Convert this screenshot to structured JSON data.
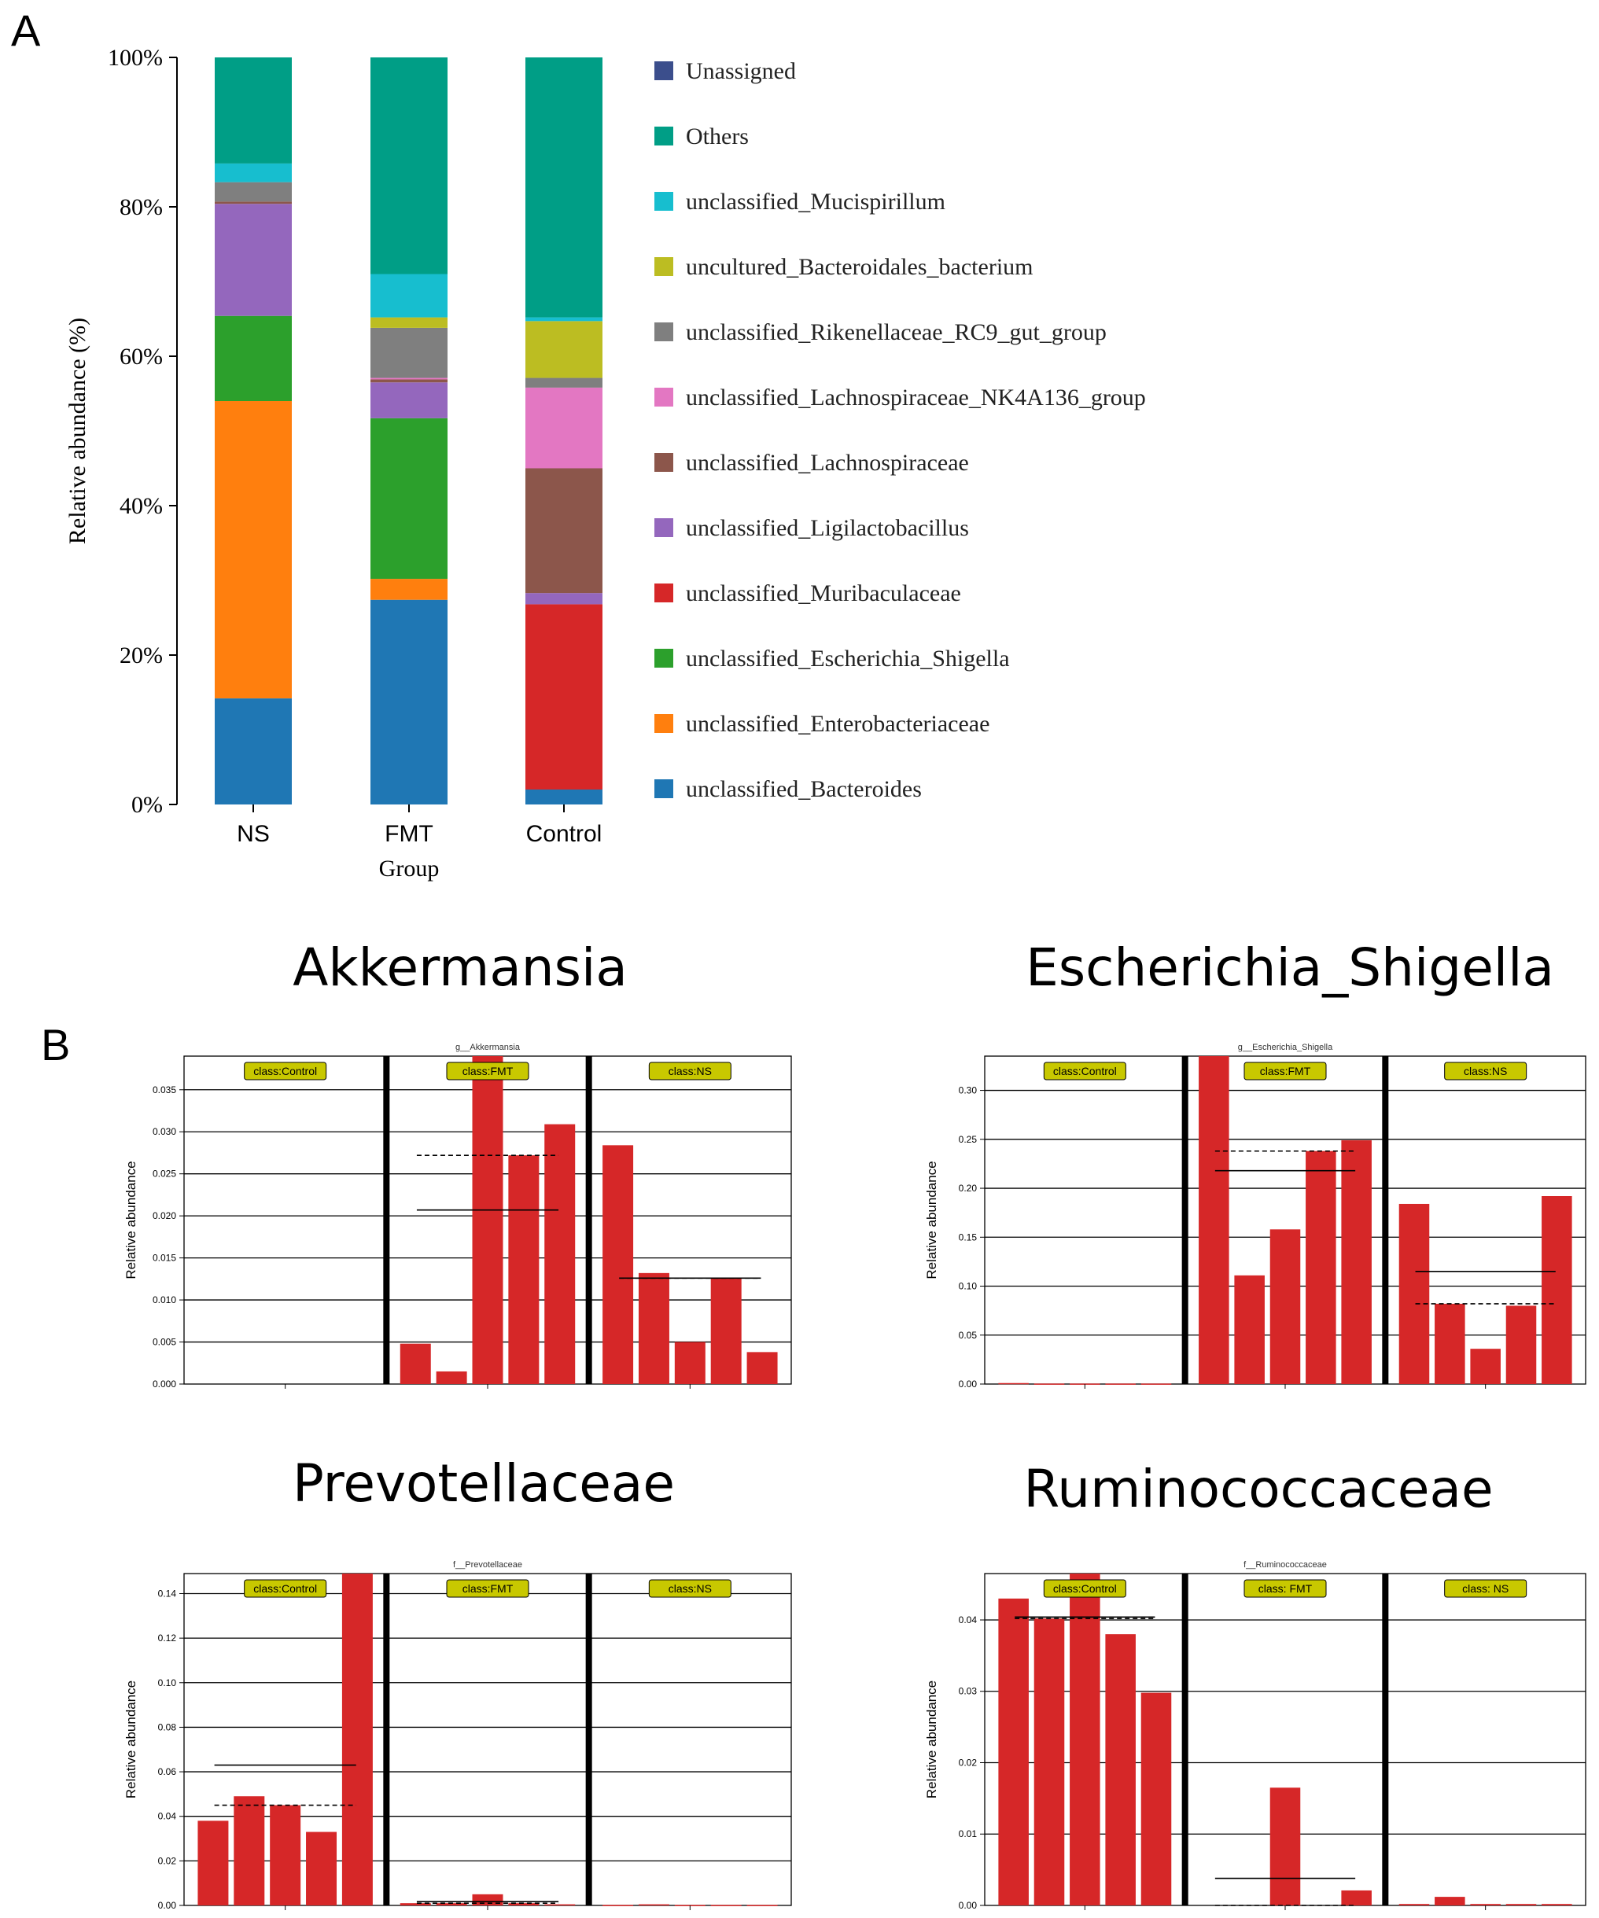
{
  "panel_labels": {
    "a": "A",
    "b": "B"
  },
  "chart_data": [
    {
      "id": "stacked",
      "type": "bar",
      "stacked": true,
      "ylabel": "Relative abundance (%)",
      "xlabel": "Group",
      "ylim": [
        0,
        100
      ],
      "yticks": [
        "0%",
        "20%",
        "40%",
        "60%",
        "80%",
        "100%"
      ],
      "categories": [
        "NS",
        "FMT",
        "Control"
      ],
      "series": [
        {
          "name": "unclassified_Bacteroides",
          "color": "#1f77b4",
          "values": [
            14.2,
            27.4,
            2.0
          ]
        },
        {
          "name": "unclassified_Enterobacteriaceae",
          "color": "#ff7f0e",
          "values": [
            39.8,
            2.8,
            0.0
          ]
        },
        {
          "name": "unclassified_Escherichia_Shigella",
          "color": "#2ca02c",
          "values": [
            11.4,
            21.5,
            0.0
          ]
        },
        {
          "name": "unclassified_Muribaculaceae",
          "color": "#d62728",
          "values": [
            0.0,
            0.0,
            24.8
          ]
        },
        {
          "name": "unclassified_Ligilactobacillus",
          "color": "#9467bd",
          "values": [
            15.0,
            4.8,
            1.5
          ]
        },
        {
          "name": "unclassified_Lachnospiraceae",
          "color": "#8c564b",
          "values": [
            0.3,
            0.4,
            16.7
          ]
        },
        {
          "name": "unclassified_Lachnospiraceae_NK4A136_group",
          "color": "#e377c2",
          "values": [
            0.0,
            0.2,
            10.8
          ]
        },
        {
          "name": "unclassified_Rikenellaceae_RC9_gut_group",
          "color": "#7f7f7f",
          "values": [
            2.6,
            6.7,
            1.3
          ]
        },
        {
          "name": "uncultured_Bacteroidales_bacterium",
          "color": "#bcbd22",
          "values": [
            0.0,
            1.4,
            7.6
          ]
        },
        {
          "name": "unclassified_Mucispirillum",
          "color": "#17becf",
          "values": [
            2.5,
            5.8,
            0.5
          ]
        },
        {
          "name": "Others",
          "color": "#009e86",
          "values": [
            14.2,
            29.0,
            34.8
          ]
        },
        {
          "name": "Unassigned",
          "color": "#3b4e8c",
          "values": [
            0.0,
            0.0,
            0.0
          ]
        }
      ]
    },
    {
      "id": "akkermansia",
      "type": "bar",
      "title": "Akkermansia",
      "subtitle": "g__Akkermansia",
      "ylabel": "Relative abundance",
      "ylim": [
        0,
        0.039
      ],
      "yticks": [
        0,
        0.005,
        0.01,
        0.015,
        0.02,
        0.025,
        0.03,
        0.035
      ],
      "tick_labels": [
        "0.000",
        "0.005",
        "0.010",
        "0.015",
        "0.020",
        "0.025",
        "0.030",
        "0.035"
      ],
      "groups": [
        {
          "label": "class:Control",
          "values": [
            0.0,
            0.0,
            0.0,
            0.0,
            0.0
          ],
          "mean": null,
          "median": null
        },
        {
          "label": "class:FMT",
          "values": [
            0.0048,
            0.0015,
            0.039,
            0.0272,
            0.0309
          ],
          "mean": 0.0207,
          "median": 0.0272
        },
        {
          "label": "class:NS",
          "values": [
            0.0284,
            0.0132,
            0.005,
            0.0126,
            0.0038
          ],
          "mean": 0.0126,
          "median": 0.0126
        }
      ]
    },
    {
      "id": "escherichia",
      "type": "bar",
      "title": "Escherichia_Shigella",
      "subtitle": "g__Escherichia_Shigella",
      "ylabel": "Relative abundance",
      "ylim": [
        0,
        0.335
      ],
      "yticks": [
        0,
        0.05,
        0.1,
        0.15,
        0.2,
        0.25,
        0.3
      ],
      "tick_labels": [
        "0.00",
        "0.05",
        "0.10",
        "0.15",
        "0.20",
        "0.25",
        "0.30"
      ],
      "groups": [
        {
          "label": "class:Control",
          "values": [
            0.001,
            0.0005,
            0.0005,
            0.0005,
            0.0005
          ],
          "mean": null,
          "median": null
        },
        {
          "label": "class:FMT",
          "values": [
            0.335,
            0.111,
            0.158,
            0.238,
            0.249
          ],
          "mean": 0.218,
          "median": 0.238
        },
        {
          "label": "class:NS",
          "values": [
            0.184,
            0.082,
            0.036,
            0.08,
            0.192
          ],
          "mean": 0.115,
          "median": 0.082
        }
      ]
    },
    {
      "id": "prevotellaceae",
      "type": "bar",
      "title": "Prevotellaceae",
      "subtitle": "f__Prevotellaceae",
      "ylabel": "Relative abundance",
      "ylim": [
        0,
        0.149
      ],
      "yticks": [
        0,
        0.02,
        0.04,
        0.06,
        0.08,
        0.1,
        0.12,
        0.14
      ],
      "tick_labels": [
        "0.00",
        "0.02",
        "0.04",
        "0.06",
        "0.08",
        "0.10",
        "0.12",
        "0.14"
      ],
      "groups": [
        {
          "label": "class:Control",
          "values": [
            0.038,
            0.049,
            0.045,
            0.033,
            0.149
          ],
          "mean": 0.063,
          "median": 0.045
        },
        {
          "label": "class:FMT",
          "values": [
            0.001,
            0.001,
            0.005,
            0.001,
            0.0005
          ],
          "mean": 0.0017,
          "median": 0.001
        },
        {
          "label": "class:NS",
          "values": [
            0.0002,
            0.0005,
            0.0002,
            0.0002,
            0.0002
          ],
          "mean": null,
          "median": null
        }
      ]
    },
    {
      "id": "ruminococcaceae",
      "type": "bar",
      "title": "Ruminococcaceae",
      "subtitle": "f__Ruminococcaceae",
      "ylabel": "Relative abundance",
      "ylim": [
        0,
        0.0465
      ],
      "yticks": [
        0,
        0.01,
        0.02,
        0.03,
        0.04
      ],
      "tick_labels": [
        "0.00",
        "0.01",
        "0.02",
        "0.03",
        "0.04"
      ],
      "groups": [
        {
          "label": "class:Control",
          "values": [
            0.043,
            0.0402,
            0.0465,
            0.038,
            0.0298
          ],
          "mean": 0.0404,
          "median": 0.0402
        },
        {
          "label": "class: FMT",
          "values": [
            0.0,
            0.0,
            0.0165,
            0.0,
            0.0021
          ],
          "mean": 0.0038,
          "median": 0.0
        },
        {
          "label": "class: NS",
          "values": [
            0.0002,
            0.0012,
            0.0002,
            0.0002,
            0.0002
          ],
          "mean": null,
          "median": null
        }
      ]
    }
  ]
}
